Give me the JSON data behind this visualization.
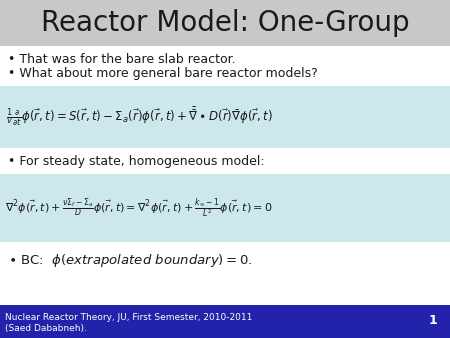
{
  "title": "Reactor Model: One-Group",
  "title_bg": "#c8c8c8",
  "title_fontsize": 20,
  "slide_bg": "#ffffff",
  "eq_bg": "#cce8ec",
  "footer_bg": "#2222aa",
  "footer_text1_line1": "Nuclear Reactor Theory, JU, First Semester, 2010-2011",
  "footer_text1_line2": "(Saed Dababneh).",
  "footer_text2": "1",
  "footer_fontsize": 6.5,
  "bullet1": "That was for the bare slab reactor.",
  "bullet2": "What about more general bare reactor models?",
  "bullet3": "For steady state, homogeneous model:",
  "text_color": "#1a1a1a",
  "bullet_color": "#1a1a1a"
}
